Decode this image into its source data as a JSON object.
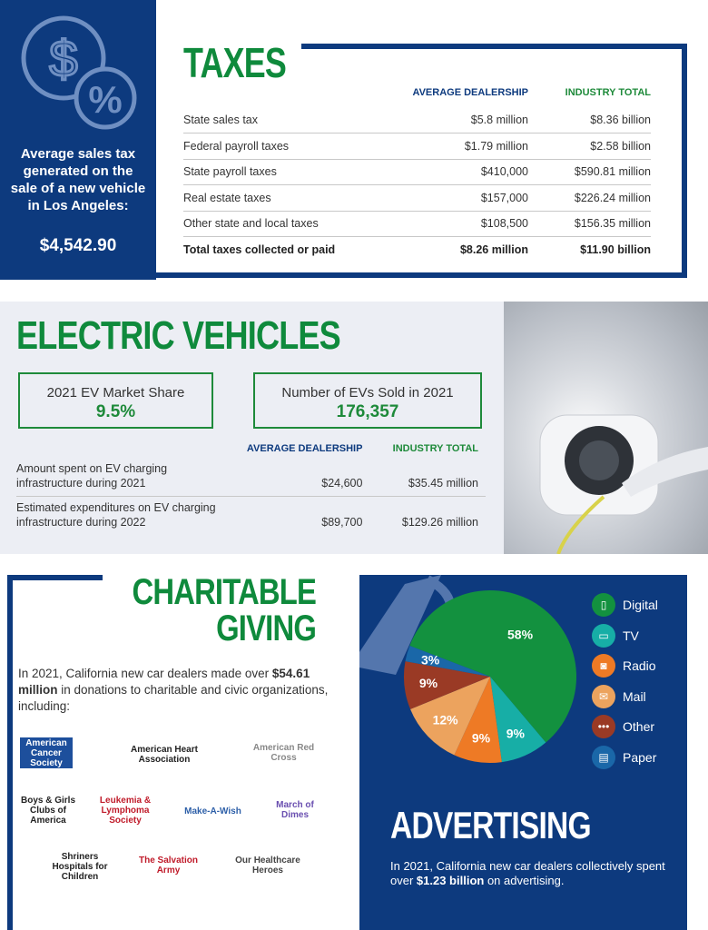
{
  "taxes": {
    "title": "TAXES",
    "side_label": "Average sales tax generated on the sale of a new vehicle in Los Angeles:",
    "side_amount": "$4,542.90",
    "col_dealership": "AVERAGE DEALERSHIP",
    "col_industry": "INDUSTRY TOTAL",
    "rows": [
      {
        "label": "State sales tax",
        "dealer": "$5.8 million",
        "industry": "$8.36 billion"
      },
      {
        "label": "Federal payroll taxes",
        "dealer": "$1.79 million",
        "industry": "$2.58 billion"
      },
      {
        "label": "State payroll taxes",
        "dealer": "$410,000",
        "industry": "$590.81 million"
      },
      {
        "label": "Real estate taxes",
        "dealer": "$157,000",
        "industry": "$226.24 million"
      },
      {
        "label": "Other state and local taxes",
        "dealer": "$108,500",
        "industry": "$156.35 million"
      },
      {
        "label": "Total taxes collected or paid",
        "dealer": "$8.26 million",
        "industry": "$11.90 billion"
      }
    ]
  },
  "ev": {
    "title": "ELECTRIC VEHICLES",
    "box1_label": "2021 EV Market Share",
    "box1_value": "9.5%",
    "box2_label": "Number of EVs Sold in 2021",
    "box2_value": "176,357",
    "col_dealership": "AVERAGE DEALERSHIP",
    "col_industry": "INDUSTRY TOTAL",
    "rows": [
      {
        "label": "Amount spent on EV charging infrastructure during 2021",
        "dealer": "$24,600",
        "industry": "$35.45 million"
      },
      {
        "label": "Estimated expenditures on EV charging infrastructure during 2022",
        "dealer": "$89,700",
        "industry": "$129.26 million"
      }
    ]
  },
  "charity": {
    "title_1": "CHARITABLE",
    "title_2": "GIVING",
    "text_pre": "In 2021, California new car dealers made over ",
    "text_bold": "$54.61 million",
    "text_post": " in donations to charitable and civic organizations, including:",
    "logos": [
      "American Cancer Society",
      "American Heart Association",
      "American Red Cross",
      "Boys & Girls Clubs of America",
      "Leukemia & Lymphoma Society",
      "Make-A-Wish",
      "March of Dimes",
      "Shriners Hospitals for Children",
      "The Salvation Army",
      "Our Healthcare Heroes"
    ]
  },
  "advertising": {
    "title": "ADVERTISING",
    "text_pre": "In 2021, California new car dealers collectively spent over ",
    "text_bold": "$1.23 billion",
    "text_post": " on advertising."
  },
  "colors": {
    "blue": "#0d3a7e",
    "green": "#0f8a3c"
  },
  "chart_data": {
    "type": "pie",
    "categories": [
      "Digital",
      "TV",
      "Radio",
      "Mail",
      "Other",
      "Paper"
    ],
    "values": [
      58,
      9,
      9,
      12,
      9,
      3
    ],
    "labels": [
      "58%",
      "9%",
      "9%",
      "12%",
      "9%",
      "3%"
    ],
    "colors": [
      "#13913f",
      "#17aea6",
      "#ee7a25",
      "#eca35e",
      "#9a3a25",
      "#1a67a8"
    ],
    "icons": [
      "phone-icon",
      "tv-icon",
      "radio-icon",
      "mail-icon",
      "dots-icon",
      "newspaper-icon"
    ],
    "legend": "right"
  }
}
